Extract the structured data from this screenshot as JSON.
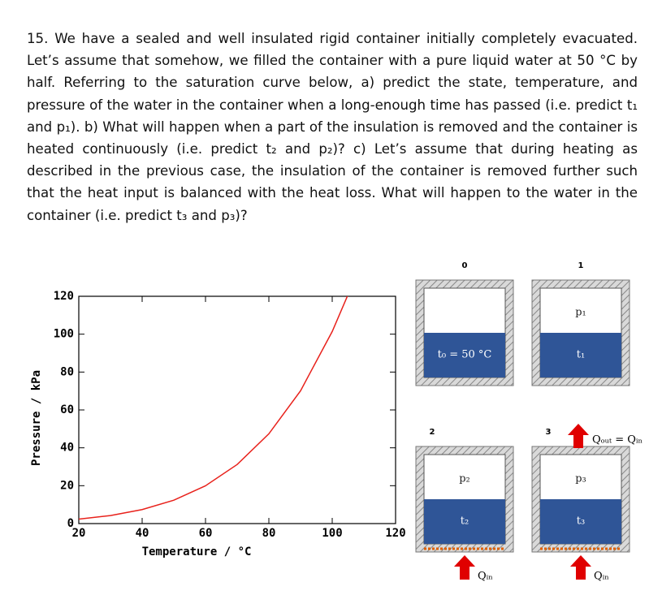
{
  "question": "15. We have a sealed and well insulated rigid container initially completely evacuated. Let’s assume that somehow, we filled the container with a pure liquid water at 50 °C by half. Referring to the saturation curve below, a) predict the state, temperature, and pressure of the water in the container when a long-enough time has passed (i.e. predict t₁ and p₁). b) What will happen when a part of the insulation is removed and the container is heated continuously (i.e. predict t₂ and p₂)? c) Let’s assume that during heating as described in the previous case, the insulation of the container is removed further such that the heat input is balanced with the heat loss. What will happen to the water in the container (i.e. predict t₃ and p₃)?",
  "chart_data": {
    "type": "line",
    "x_label": "Temperature / °C",
    "y_label": "Pressure / kPa",
    "x": [
      20,
      30,
      40,
      50,
      60,
      70,
      80,
      90,
      100,
      105
    ],
    "series": [
      {
        "color": "#e8211b",
        "values": [
          2.34,
          4.25,
          7.38,
          12.35,
          19.95,
          31.2,
          47.4,
          70.1,
          101.4,
          120.9
        ]
      }
    ],
    "xlim": [
      20,
      120
    ],
    "ylim": [
      0,
      120
    ],
    "xticks": [
      20,
      40,
      60,
      80,
      100,
      120
    ],
    "yticks": [
      0,
      20,
      40,
      60,
      80,
      100,
      120
    ]
  },
  "diagram": {
    "states": [
      {
        "number": "0",
        "pressure": null,
        "temperature": "t₀ = 50 °C"
      },
      {
        "number": "1",
        "pressure": "p₁",
        "temperature": "t₁"
      },
      {
        "number": "2",
        "pressure": "p₂",
        "temperature": "t₂",
        "heat_in": "Qᵢₙ"
      },
      {
        "number": "3",
        "pressure": "p₃",
        "temperature": "t₃",
        "heat_in": "Qᵢₙ",
        "heat_out": "Qₒᵤₜ = Qᵢₙ"
      }
    ]
  }
}
